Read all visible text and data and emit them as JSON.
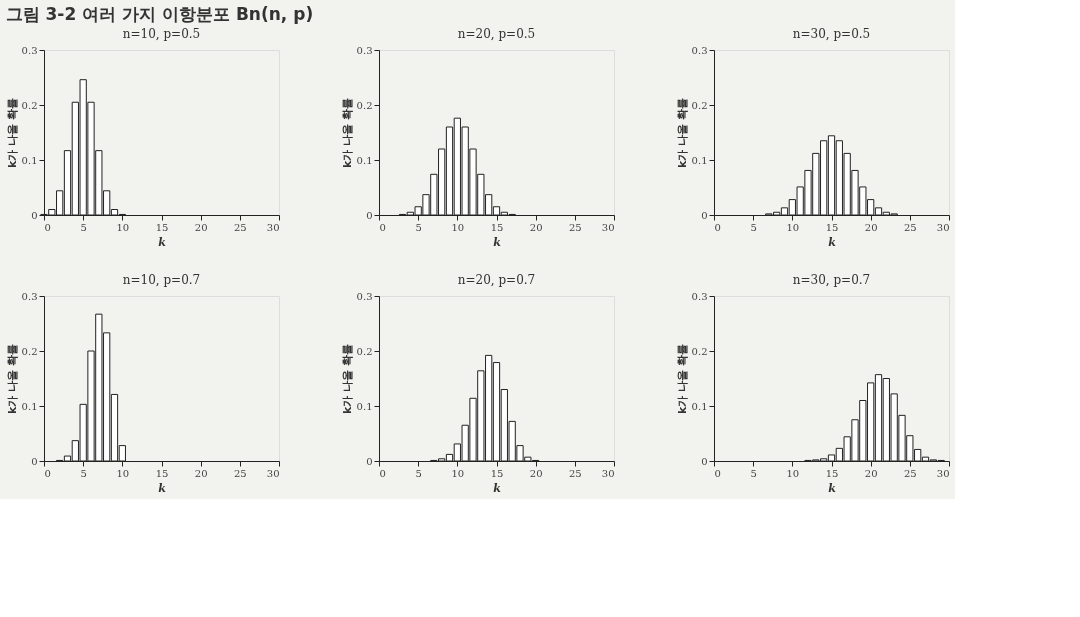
{
  "chart_data": [
    {
      "type": "bar",
      "title": "n=10, p=0.5",
      "xlabel": "k",
      "ylabel": "k가 나올 확률",
      "annotations": [
        "그림 3-2 여러 가지 이항분포 Bn(n, p)"
      ],
      "x": [
        0,
        1,
        2,
        3,
        4,
        5,
        6,
        7,
        8,
        9,
        10
      ],
      "series": [
        {
          "color": "#ffffff",
          "values": [
            0.001,
            0.01,
            0.044,
            0.117,
            0.205,
            0.246,
            0.205,
            0.117,
            0.044,
            0.01,
            0.001
          ]
        }
      ],
      "xlim": [
        0,
        30
      ],
      "xticks": [
        0,
        5,
        10,
        15,
        20,
        25,
        30
      ],
      "ylim": [
        0,
        0.3
      ],
      "yticks": [
        0,
        0.1,
        0.2,
        0.3
      ],
      "grid": false
    },
    {
      "type": "bar",
      "title": "n=20, p=0.5",
      "xlabel": "k",
      "ylabel": "k가 나올 확률",
      "x": [
        3,
        4,
        5,
        6,
        7,
        8,
        9,
        10,
        11,
        12,
        13,
        14,
        15,
        16,
        17
      ],
      "series": [
        {
          "color": "#ffffff",
          "values": [
            0.001,
            0.005,
            0.015,
            0.037,
            0.074,
            0.12,
            0.16,
            0.176,
            0.16,
            0.12,
            0.074,
            0.037,
            0.015,
            0.005,
            0.001
          ]
        }
      ],
      "xlim": [
        0,
        30
      ],
      "xticks": [
        0,
        5,
        10,
        15,
        20,
        25,
        30
      ],
      "ylim": [
        0,
        0.3
      ],
      "yticks": [
        0,
        0.1,
        0.2,
        0.3
      ],
      "grid": false
    },
    {
      "type": "bar",
      "title": "n=30, p=0.5",
      "xlabel": "k",
      "ylabel": "k가 나올 확률",
      "x": [
        7,
        8,
        9,
        10,
        11,
        12,
        13,
        14,
        15,
        16,
        17,
        18,
        19,
        20,
        21,
        22,
        23
      ],
      "series": [
        {
          "color": "#ffffff",
          "values": [
            0.002,
            0.005,
            0.013,
            0.028,
            0.051,
            0.081,
            0.112,
            0.135,
            0.144,
            0.135,
            0.112,
            0.081,
            0.051,
            0.028,
            0.013,
            0.005,
            0.002
          ]
        }
      ],
      "xlim": [
        0,
        30
      ],
      "xticks": [
        0,
        5,
        10,
        15,
        20,
        25,
        30
      ],
      "ylim": [
        0,
        0.3
      ],
      "yticks": [
        0,
        0.1,
        0.2,
        0.3
      ],
      "grid": false
    },
    {
      "type": "bar",
      "title": "n=10, p=0.7",
      "xlabel": "k",
      "ylabel": "k가 나올 확률",
      "x": [
        2,
        3,
        4,
        5,
        6,
        7,
        8,
        9,
        10
      ],
      "series": [
        {
          "color": "#ffffff",
          "values": [
            0.001,
            0.009,
            0.037,
            0.103,
            0.2,
            0.267,
            0.233,
            0.121,
            0.028
          ]
        }
      ],
      "xlim": [
        0,
        30
      ],
      "xticks": [
        0,
        5,
        10,
        15,
        20,
        25,
        30
      ],
      "ylim": [
        0,
        0.3
      ],
      "yticks": [
        0,
        0.1,
        0.2,
        0.3
      ],
      "grid": false
    },
    {
      "type": "bar",
      "title": "n=20, p=0.7",
      "xlabel": "k",
      "ylabel": "k가 나올 확률",
      "x": [
        7,
        8,
        9,
        10,
        11,
        12,
        13,
        14,
        15,
        16,
        17,
        18,
        19,
        20
      ],
      "series": [
        {
          "color": "#ffffff",
          "values": [
            0.001,
            0.004,
            0.012,
            0.031,
            0.065,
            0.114,
            0.164,
            0.192,
            0.179,
            0.13,
            0.072,
            0.028,
            0.007,
            0.001
          ]
        }
      ],
      "xlim": [
        0,
        30
      ],
      "xticks": [
        0,
        5,
        10,
        15,
        20,
        25,
        30
      ],
      "ylim": [
        0,
        0.3
      ],
      "yticks": [
        0,
        0.1,
        0.2,
        0.3
      ],
      "grid": false
    },
    {
      "type": "bar",
      "title": "n=30, p=0.7",
      "xlabel": "k",
      "ylabel": "k가 나올 확률",
      "x": [
        12,
        13,
        14,
        15,
        16,
        17,
        18,
        19,
        20,
        21,
        22,
        23,
        24,
        25,
        26,
        27,
        28,
        29
      ],
      "series": [
        {
          "color": "#ffffff",
          "values": [
            0.001,
            0.002,
            0.004,
            0.011,
            0.023,
            0.044,
            0.075,
            0.11,
            0.142,
            0.157,
            0.15,
            0.122,
            0.083,
            0.046,
            0.021,
            0.007,
            0.002,
            0.001
          ]
        }
      ],
      "xlim": [
        0,
        30
      ],
      "xticks": [
        0,
        5,
        10,
        15,
        20,
        25,
        30
      ],
      "ylim": [
        0,
        0.3
      ],
      "yticks": [
        0,
        0.1,
        0.2,
        0.3
      ],
      "grid": false
    }
  ]
}
